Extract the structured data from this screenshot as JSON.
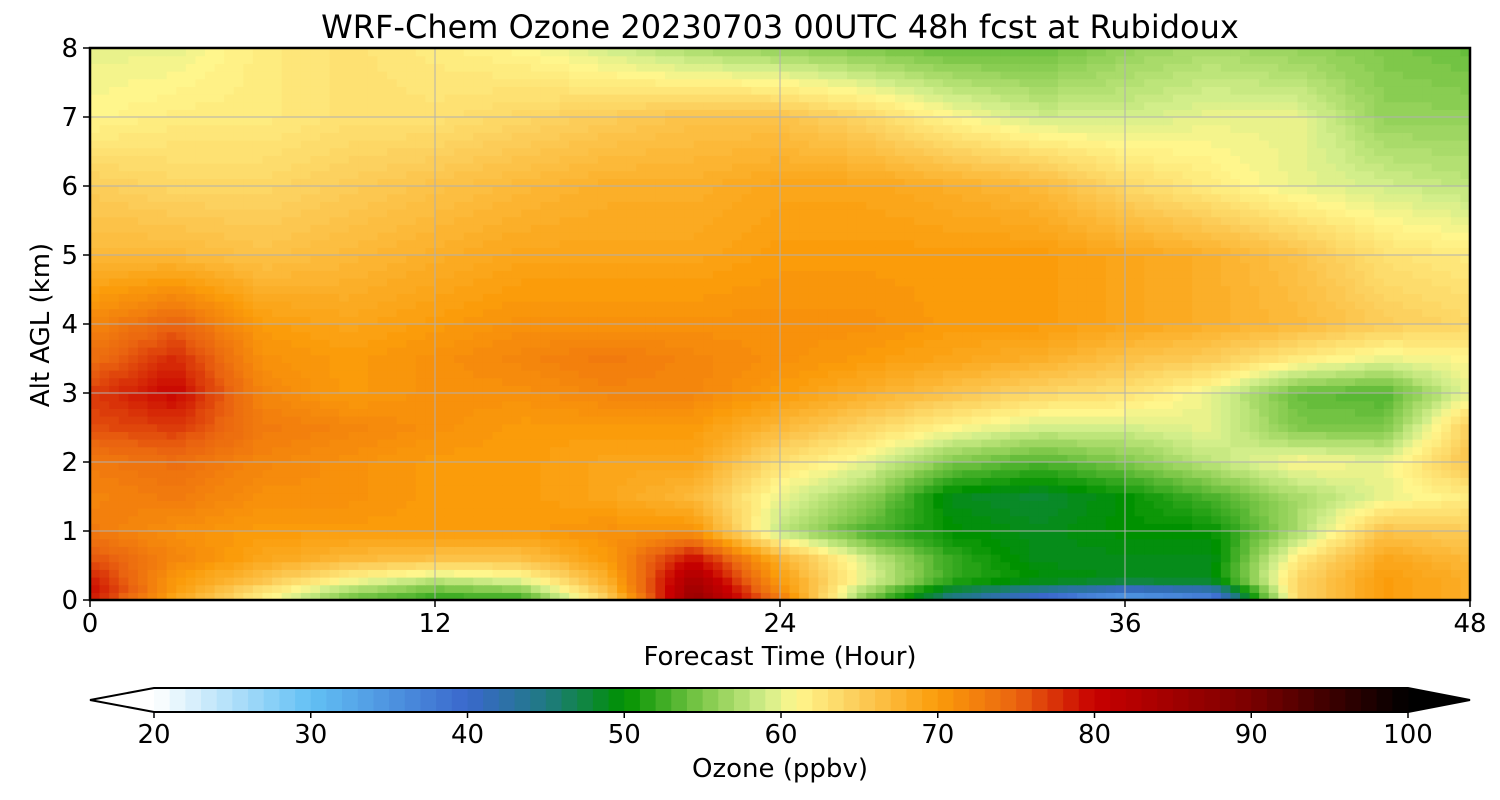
{
  "chart_data": {
    "type": "heatmap",
    "subtype": "filled-contour",
    "title": "WRF-Chem Ozone  20230703 00UTC 48h fcst at Rubidoux",
    "xlabel": "Forecast Time (Hour)",
    "ylabel": "Alt AGL (km)",
    "xlim": [
      0,
      48
    ],
    "ylim": [
      0,
      8
    ],
    "x_ticks": [
      0,
      12,
      24,
      36,
      48
    ],
    "y_ticks": [
      0,
      1,
      2,
      3,
      4,
      5,
      6,
      7,
      8
    ],
    "grid": true,
    "x_hours": [
      0,
      3,
      6,
      9,
      12,
      15,
      18,
      21,
      24,
      27,
      30,
      33,
      36,
      39,
      42,
      45,
      48
    ],
    "z_km": [
      0,
      0.1,
      0.3,
      0.6,
      1,
      1.5,
      2,
      2.5,
      3,
      3.5,
      4,
      5,
      6,
      7,
      8
    ],
    "ozone_ppbv": [
      [
        78,
        68,
        62,
        54,
        52,
        52,
        64,
        86,
        74,
        55,
        44,
        38,
        33,
        36,
        64,
        70,
        68
      ],
      [
        80,
        70,
        62,
        56,
        53,
        54,
        66,
        86,
        72,
        56,
        46,
        42,
        37,
        39,
        64,
        70,
        68
      ],
      [
        79,
        70,
        66,
        61,
        58,
        60,
        68,
        84,
        70,
        60,
        52,
        50,
        49,
        49,
        64,
        70,
        68
      ],
      [
        76,
        72,
        69,
        67,
        66,
        66,
        70,
        80,
        68,
        59,
        52,
        49,
        49,
        49,
        62,
        69,
        67
      ],
      [
        73,
        71,
        70,
        70,
        70,
        70,
        71,
        71,
        58,
        53,
        50,
        49,
        50,
        50,
        57,
        66,
        65
      ],
      [
        72,
        73,
        71,
        71,
        70,
        70,
        69,
        67,
        60,
        56,
        49,
        48,
        50,
        53,
        57,
        60,
        62
      ],
      [
        73,
        74,
        72,
        71,
        70,
        70,
        69,
        69,
        63,
        60,
        55,
        53,
        55,
        58,
        61,
        60,
        66
      ],
      [
        76,
        77,
        73,
        72,
        71,
        70,
        70,
        70,
        67,
        64,
        61,
        59,
        59,
        60,
        55,
        55,
        65
      ],
      [
        77,
        80,
        72,
        70,
        71,
        71,
        72,
        72,
        70,
        68,
        66,
        64,
        63,
        60,
        54,
        53,
        60
      ],
      [
        74,
        78,
        71,
        70,
        71,
        72,
        73,
        72,
        71,
        70,
        69,
        68,
        66,
        65,
        62,
        60,
        61
      ],
      [
        72,
        75,
        70,
        69,
        70,
        71,
        71,
        71,
        71,
        71,
        70,
        70,
        69,
        68,
        67,
        65,
        64
      ],
      [
        67,
        67,
        66,
        67,
        68,
        69,
        69,
        69,
        70,
        70,
        70,
        70,
        69,
        68,
        66,
        63,
        62
      ],
      [
        65,
        64,
        64,
        65,
        66,
        67,
        68,
        68,
        69,
        69,
        68,
        67,
        64,
        62,
        60,
        59,
        58
      ],
      [
        61,
        62,
        62,
        63,
        63,
        64,
        65,
        66,
        66,
        64,
        61,
        59,
        59,
        60,
        60,
        56,
        56
      ],
      [
        60,
        60,
        62,
        63,
        62,
        61,
        59,
        57,
        56,
        55,
        54,
        54,
        56,
        57,
        56,
        55,
        54
      ]
    ],
    "colorbar": {
      "label": "Ozone  (ppbv)",
      "ticks": [
        20,
        30,
        40,
        50,
        60,
        70,
        80,
        90,
        100
      ],
      "range": [
        20,
        100
      ],
      "extend": "both",
      "color_stops": [
        {
          "v": 20,
          "c": "#ffffff"
        },
        {
          "v": 30,
          "c": "#62c0f4"
        },
        {
          "v": 40,
          "c": "#3a68cc"
        },
        {
          "v": 45,
          "c": "#1f7a82"
        },
        {
          "v": 50,
          "c": "#009100"
        },
        {
          "v": 55,
          "c": "#7fc84a"
        },
        {
          "v": 59,
          "c": "#d2ee8a"
        },
        {
          "v": 61,
          "c": "#fff68c"
        },
        {
          "v": 65,
          "c": "#fccc58"
        },
        {
          "v": 70,
          "c": "#fb9c0a"
        },
        {
          "v": 75,
          "c": "#ea6410"
        },
        {
          "v": 80,
          "c": "#c80000"
        },
        {
          "v": 90,
          "c": "#7a0000"
        },
        {
          "v": 100,
          "c": "#000000"
        }
      ]
    }
  }
}
